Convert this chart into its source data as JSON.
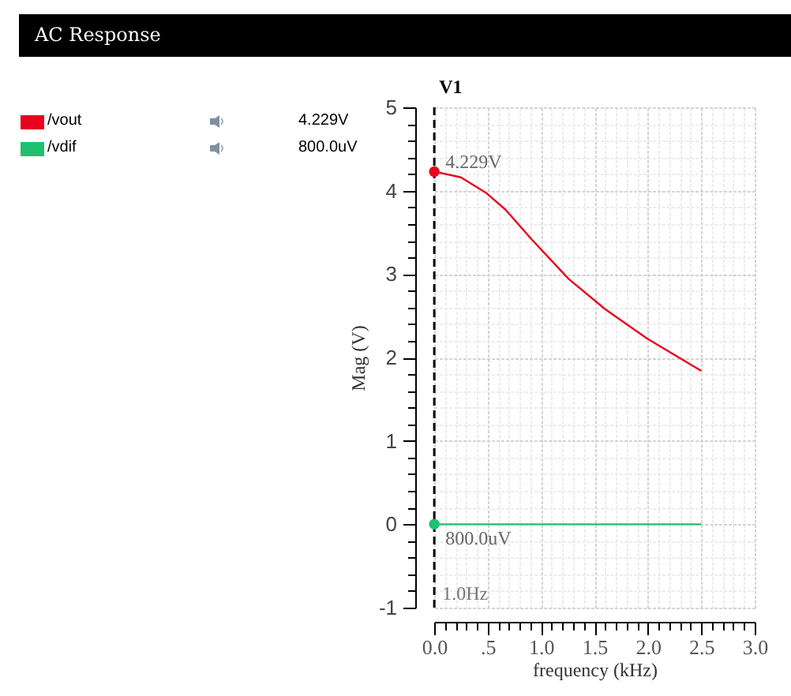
{
  "chart_data": {
    "type": "line",
    "title": "AC Response",
    "xlabel": "frequency (kHz)",
    "ylabel": "Mag (V)",
    "series": [
      {
        "name": "/vout",
        "color": "#e8001c",
        "x": [
          0.001,
          0.25,
          0.49,
          0.67,
          0.91,
          1.26,
          1.6,
          1.99,
          2.5
        ],
        "values": [
          4.23,
          4.16,
          3.97,
          3.77,
          3.42,
          2.94,
          2.58,
          2.23,
          1.84
        ]
      },
      {
        "name": "/vdif",
        "color": "#20c070",
        "x": [
          0.001,
          2.5
        ],
        "values": [
          0,
          0
        ]
      }
    ],
    "annotations": [
      {
        "text": "4.229V",
        "x": 0.001,
        "y": 4.229
      },
      {
        "text": "800.0uV",
        "x": 0.001,
        "y": 0.0008
      },
      "V1"
    ],
    "ref_lines": [
      {
        "axis": "x",
        "value": 0.001,
        "label": "1.0Hz",
        "color": "#000000",
        "line_style": "dashed"
      }
    ],
    "xlim": [
      0,
      3
    ],
    "ylim": [
      -1,
      5
    ],
    "xticks": [
      {
        "value": 0,
        "label": "0.0"
      },
      {
        "value": 0.1,
        "label": null
      },
      {
        "value": 0.2,
        "label": null
      },
      {
        "value": 0.3,
        "label": null
      },
      {
        "value": 0.4,
        "label": null
      },
      {
        "value": 0.5,
        "label": ".5"
      },
      {
        "value": 0.6,
        "label": null
      },
      {
        "value": 0.7,
        "label": null
      },
      {
        "value": 0.8,
        "label": null
      },
      {
        "value": 0.9,
        "label": null
      },
      {
        "value": 1,
        "label": "1.0"
      },
      {
        "value": 1.1,
        "label": null
      },
      {
        "value": 1.2,
        "label": null
      },
      {
        "value": 1.3,
        "label": null
      },
      {
        "value": 1.4,
        "label": null
      },
      {
        "value": 1.5,
        "label": "1.5"
      },
      {
        "value": 1.6,
        "label": null
      },
      {
        "value": 1.7,
        "label": null
      },
      {
        "value": 1.8,
        "label": null
      },
      {
        "value": 1.9,
        "label": null
      },
      {
        "value": 2,
        "label": "2.0"
      },
      {
        "value": 2.1,
        "label": null
      },
      {
        "value": 2.2,
        "label": null
      },
      {
        "value": 2.3,
        "label": null
      },
      {
        "value": 2.4,
        "label": null
      },
      {
        "value": 2.5,
        "label": "2.5"
      },
      {
        "value": 2.6,
        "label": null
      },
      {
        "value": 2.7,
        "label": null
      },
      {
        "value": 2.8,
        "label": null
      },
      {
        "value": 2.9,
        "label": null
      },
      {
        "value": 3,
        "label": "3.0"
      }
    ],
    "yticks": [
      -1,
      {
        "value": -0.8,
        "label": null
      },
      {
        "value": -0.6,
        "label": null
      },
      {
        "value": -0.4,
        "label": null
      },
      {
        "value": -0.2,
        "label": null
      },
      0,
      {
        "value": 0.2,
        "label": null
      },
      {
        "value": 0.4,
        "label": null
      },
      {
        "value": 0.6,
        "label": null
      },
      {
        "value": 0.8,
        "label": null
      },
      1,
      {
        "value": 1.2,
        "label": null
      },
      {
        "value": 1.4,
        "label": null
      },
      {
        "value": 1.6,
        "label": null
      },
      {
        "value": 1.8,
        "label": null
      },
      2,
      {
        "value": 2.2,
        "label": null
      },
      {
        "value": 2.4,
        "label": null
      },
      {
        "value": 2.6,
        "label": null
      },
      {
        "value": 2.8,
        "label": null
      },
      3,
      {
        "value": 3.2,
        "label": null
      },
      {
        "value": 3.4,
        "label": null
      },
      {
        "value": 3.6,
        "label": null
      },
      {
        "value": 3.8,
        "label": null
      },
      4,
      {
        "value": 4.2,
        "label": null
      },
      {
        "value": 4.4,
        "label": null
      },
      {
        "value": 4.6,
        "label": null
      },
      {
        "value": 4.8,
        "label": null
      },
      5
    ],
    "grid": true,
    "legend": "left",
    "line_style": "solid"
  }
}
